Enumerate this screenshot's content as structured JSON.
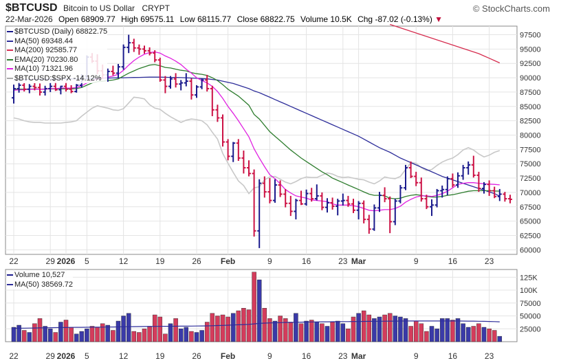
{
  "header": {
    "symbol": "$BTCUSD",
    "name": "Bitcoin to US Dollar",
    "exchange": "CRYPT",
    "copyright": "© StockCharts.com",
    "date": "22-Mar-2026",
    "open_label": "Open",
    "open": "68909.77",
    "high_label": "High",
    "high": "69575.11",
    "low_label": "Low",
    "low": "68115.77",
    "close_label": "Close",
    "close": "68822.75",
    "volume_label": "Volume",
    "volume": "10.5K",
    "chg_label": "Chg",
    "chg": "-87.02 (-0.13%)",
    "chg_arrow": "▼"
  },
  "legend_price": [
    {
      "text": "$BTCUSD (Daily) 68822.75",
      "color": "#1a1a8c"
    },
    {
      "text": "MA(50) 69348.44",
      "color": "#2d2d9a"
    },
    {
      "text": "MA(200) 92585.77",
      "color": "#d62d4f"
    },
    {
      "text": "EMA(20) 70230.80",
      "color": "#2e7d2e"
    },
    {
      "text": "MA(10) 71321.96",
      "color": "#e020e0"
    },
    {
      "text": "$BTCUSD:$SPX -14.12%",
      "color": "#aaaaaa"
    }
  ],
  "legend_volume": [
    {
      "text": "Volume 10,527",
      "color": "#1a1a8c"
    },
    {
      "text": "MA(50) 38569.72",
      "color": "#2d2d9a"
    }
  ],
  "colors": {
    "up": "#1a1a8c",
    "down": "#cc1144",
    "vol_up": "#3a3aa8",
    "vol_down": "#d43c5c",
    "ma50": "#2d2d9a",
    "ma200": "#d62d4f",
    "ema20": "#2e7d2e",
    "ma10": "#e020e0",
    "ratio": "#c8c8c8",
    "grid": "#e4e4e4"
  },
  "chart_data": {
    "type": "ohlc",
    "price_axis_ticks": [
      60000,
      62500,
      65000,
      67500,
      70000,
      72500,
      75000,
      77500,
      80000,
      82500,
      85000,
      87500,
      90000,
      92500,
      95000,
      97500
    ],
    "price_ylim": [
      59200,
      99000
    ],
    "volume_axis_ticks": [
      25000,
      50000,
      75000,
      100000,
      125000
    ],
    "volume_axis_labels": [
      "25000",
      "50000",
      "75000",
      "100K",
      "125K"
    ],
    "volume_ylim": [
      0,
      140000
    ],
    "x_tick_labels": [
      {
        "i": 0,
        "label": "22"
      },
      {
        "i": 7,
        "label": "29"
      },
      {
        "i": 10,
        "label": "2026",
        "bold": true
      },
      {
        "i": 14,
        "label": "5"
      },
      {
        "i": 21,
        "label": "12"
      },
      {
        "i": 28,
        "label": "19"
      },
      {
        "i": 35,
        "label": "26"
      },
      {
        "i": 41,
        "label": "Feb",
        "bold": true
      },
      {
        "i": 49,
        "label": "9"
      },
      {
        "i": 56,
        "label": "16"
      },
      {
        "i": 63,
        "label": "23"
      },
      {
        "i": 66,
        "label": "Mar",
        "bold": true
      },
      {
        "i": 77,
        "label": "9"
      },
      {
        "i": 84,
        "label": "16"
      },
      {
        "i": 91,
        "label": "23"
      }
    ],
    "bars": [
      [
        86500,
        88800,
        85500,
        88100
      ],
      [
        88100,
        89300,
        87400,
        88700
      ],
      [
        88700,
        89100,
        87600,
        88000
      ],
      [
        88000,
        88900,
        87300,
        88500
      ],
      [
        88500,
        89100,
        87800,
        88300
      ],
      [
        88300,
        89000,
        86900,
        87500
      ],
      [
        87500,
        88600,
        86900,
        88100
      ],
      [
        88100,
        89200,
        87500,
        88500
      ],
      [
        88500,
        89300,
        87700,
        87900
      ],
      [
        87900,
        88600,
        87100,
        88500
      ],
      [
        88500,
        89300,
        87600,
        88000
      ],
      [
        88000,
        88700,
        87300,
        87600
      ],
      [
        87600,
        88900,
        87400,
        88700
      ],
      [
        88700,
        90600,
        88300,
        90300
      ],
      [
        90300,
        93900,
        89800,
        93600
      ],
      [
        93600,
        94300,
        92600,
        92900
      ],
      [
        92900,
        94100,
        90600,
        91200
      ],
      [
        91200,
        92300,
        89800,
        90500
      ],
      [
        90500,
        91600,
        89300,
        91100
      ],
      [
        91100,
        92100,
        90400,
        90800
      ],
      [
        90800,
        92400,
        89900,
        91900
      ],
      [
        91900,
        95800,
        91400,
        95300
      ],
      [
        95300,
        97500,
        94300,
        96100
      ],
      [
        96100,
        96800,
        94500,
        95200
      ],
      [
        95200,
        95800,
        94000,
        95000
      ],
      [
        95000,
        95600,
        94200,
        94700
      ],
      [
        94700,
        95300,
        93900,
        94300
      ],
      [
        94300,
        94800,
        92700,
        93100
      ],
      [
        93100,
        93500,
        89300,
        89600
      ],
      [
        89600,
        90300,
        87300,
        88500
      ],
      [
        88500,
        90300,
        88100,
        89800
      ],
      [
        89800,
        90800,
        88300,
        88900
      ],
      [
        88900,
        89600,
        87800,
        89100
      ],
      [
        89100,
        90800,
        88500,
        89400
      ],
      [
        89400,
        89900,
        86200,
        87000
      ],
      [
        87000,
        88700,
        86500,
        88400
      ],
      [
        88400,
        89900,
        88000,
        89600
      ],
      [
        89600,
        90500,
        87600,
        88100
      ],
      [
        88100,
        88600,
        83300,
        84400
      ],
      [
        84400,
        85300,
        82300,
        83000
      ],
      [
        83000,
        83600,
        78000,
        78800
      ],
      [
        78800,
        79300,
        75600,
        76300
      ],
      [
        76300,
        78800,
        75300,
        78600
      ],
      [
        78600,
        79300,
        75500,
        76000
      ],
      [
        76000,
        77300,
        73300,
        74300
      ],
      [
        74300,
        75600,
        72800,
        73300
      ],
      [
        73300,
        74000,
        62300,
        63300
      ],
      [
        63300,
        72300,
        60300,
        71600
      ],
      [
        71600,
        72800,
        69100,
        70100
      ],
      [
        70100,
        72500,
        68100,
        68600
      ],
      [
        68600,
        72300,
        68200,
        71300
      ],
      [
        71300,
        72100,
        69200,
        69700
      ],
      [
        69700,
        70600,
        67400,
        68100
      ],
      [
        68100,
        69400,
        65900,
        66700
      ],
      [
        66700,
        68900,
        65300,
        68600
      ],
      [
        68600,
        70300,
        67800,
        68000
      ],
      [
        68000,
        70500,
        67700,
        69800
      ],
      [
        69800,
        70800,
        68400,
        68900
      ],
      [
        68900,
        71400,
        68600,
        69400
      ],
      [
        69400,
        70000,
        66900,
        67400
      ],
      [
        67400,
        69000,
        66500,
        68200
      ],
      [
        68200,
        69100,
        67000,
        67600
      ],
      [
        67600,
        68900,
        66000,
        68500
      ],
      [
        68500,
        69800,
        67700,
        68600
      ],
      [
        68600,
        69400,
        67500,
        68000
      ],
      [
        68000,
        68900,
        66400,
        66900
      ],
      [
        66900,
        68500,
        65300,
        68100
      ],
      [
        68100,
        68600,
        64600,
        65300
      ],
      [
        65300,
        66100,
        62800,
        63600
      ],
      [
        63600,
        67900,
        63300,
        67300
      ],
      [
        67300,
        70100,
        66600,
        69500
      ],
      [
        69500,
        70900,
        68300,
        68900
      ],
      [
        68900,
        69300,
        62900,
        64900
      ],
      [
        64900,
        68900,
        64300,
        68500
      ],
      [
        68500,
        71300,
        68100,
        70800
      ],
      [
        70800,
        74800,
        70400,
        74300
      ],
      [
        74300,
        75400,
        72500,
        72800
      ],
      [
        72800,
        73600,
        71100,
        71700
      ],
      [
        71700,
        72600,
        68400,
        68900
      ],
      [
        68900,
        69600,
        67100,
        67500
      ],
      [
        67500,
        68800,
        65900,
        67800
      ],
      [
        67800,
        70600,
        67400,
        70300
      ],
      [
        70300,
        71200,
        69100,
        70500
      ],
      [
        70500,
        72800,
        69500,
        72400
      ],
      [
        72400,
        73300,
        70900,
        71300
      ],
      [
        71300,
        73500,
        70800,
        72900
      ],
      [
        72900,
        74800,
        72200,
        74300
      ],
      [
        74300,
        75400,
        73100,
        74800
      ],
      [
        74800,
        76400,
        72600,
        73000
      ],
      [
        73000,
        73600,
        70100,
        70700
      ],
      [
        70700,
        71800,
        69800,
        71400
      ],
      [
        71400,
        72100,
        69400,
        70300
      ],
      [
        70300,
        71000,
        69000,
        69300
      ],
      [
        69300,
        70600,
        68500,
        69700
      ],
      [
        69700,
        70100,
        68400,
        68900
      ],
      [
        68900,
        69600,
        68100,
        68800
      ]
    ],
    "volume": [
      28000,
      32000,
      22000,
      18000,
      35000,
      45000,
      30000,
      25000,
      18000,
      38000,
      42000,
      28000,
      15000,
      20000,
      25000,
      30000,
      28000,
      35000,
      32000,
      22000,
      40000,
      50000,
      55000,
      20000,
      18000,
      25000,
      30000,
      52000,
      48000,
      15000,
      35000,
      45000,
      25000,
      28000,
      20000,
      18000,
      22000,
      38000,
      55000,
      50000,
      52000,
      48000,
      55000,
      60000,
      65000,
      62000,
      135000,
      120000,
      65000,
      45000,
      40000,
      50000,
      45000,
      38000,
      55000,
      35000,
      40000,
      42000,
      38000,
      35000,
      30000,
      38000,
      40000,
      35000,
      25000,
      48000,
      55000,
      60000,
      52000,
      45000,
      48000,
      52000,
      55000,
      50000,
      48000,
      45000,
      30000,
      40000,
      35000,
      20000,
      30000,
      25000,
      45000,
      45000,
      42000,
      45000,
      35000,
      28000,
      30000,
      35000,
      28000,
      25000,
      22000,
      10527
    ],
    "ma50": [
      89600,
      89650,
      89700,
      89720,
      89730,
      89740,
      89750,
      89760,
      89770,
      89780,
      89790,
      89800,
      89820,
      89840,
      89860,
      89880,
      89900,
      89920,
      89940,
      89960,
      89980,
      90000,
      90020,
      90040,
      90060,
      90080,
      90100,
      90120,
      90100,
      90080,
      90060,
      90040,
      90020,
      90000,
      89950,
      89900,
      89850,
      89800,
      89700,
      89600,
      89400,
      89200,
      89000,
      88700,
      88400,
      88100,
      87700,
      87400,
      87000,
      86600,
      86200,
      85800,
      85400,
      85000,
      84600,
      84200,
      83800,
      83400,
      83000,
      82600,
      82200,
      81800,
      81400,
      81000,
      80600,
      80200,
      79800,
      79300,
      78800,
      78300,
      77800,
      77400,
      77000,
      76500,
      76000,
      75600,
      75200,
      74800,
      74400,
      74000,
      73600,
      73200,
      72800,
      72500,
      72200,
      71900,
      71600,
      71300,
      71000,
      70700,
      70400,
      70100,
      69800,
      69348
    ],
    "ma200": [
      null,
      null,
      null,
      null,
      null,
      null,
      null,
      null,
      null,
      null,
      null,
      null,
      null,
      null,
      null,
      null,
      null,
      null,
      null,
      null,
      null,
      null,
      null,
      null,
      null,
      null,
      null,
      null,
      null,
      null,
      null,
      null,
      null,
      null,
      null,
      null,
      null,
      null,
      null,
      null,
      null,
      null,
      null,
      null,
      null,
      null,
      null,
      null,
      null,
      null,
      null,
      null,
      null,
      null,
      null,
      null,
      null,
      null,
      null,
      null,
      null,
      null,
      null,
      null,
      null,
      null,
      null,
      null,
      null,
      null,
      null,
      null,
      99300,
      99000,
      98700,
      98400,
      98100,
      97800,
      97500,
      97200,
      96900,
      96600,
      96300,
      96000,
      95700,
      95400,
      95100,
      94800,
      94500,
      94200,
      93800,
      93400,
      93000,
      92586
    ],
    "ema20": [
      88000,
      88020,
      88010,
      88030,
      88040,
      88020,
      88030,
      88060,
      88050,
      88080,
      88070,
      88050,
      88100,
      88300,
      88700,
      89100,
      89300,
      89400,
      89500,
      89600,
      89800,
      90300,
      90800,
      91200,
      91600,
      91900,
      92200,
      92300,
      92100,
      91800,
      91700,
      91500,
      91300,
      91200,
      90900,
      90700,
      90600,
      90400,
      90000,
      89500,
      88800,
      88000,
      87400,
      86800,
      86000,
      85200,
      83600,
      82800,
      81700,
      80600,
      79800,
      79000,
      78200,
      77400,
      76700,
      76000,
      75400,
      74800,
      74200,
      73600,
      73100,
      72500,
      72100,
      71700,
      71300,
      70900,
      70500,
      70100,
      69700,
      69500,
      69500,
      69400,
      69000,
      68900,
      69000,
      69300,
      69500,
      69600,
      69500,
      69300,
      69200,
      69200,
      69300,
      69500,
      69600,
      69800,
      70000,
      70200,
      70300,
      70300,
      70300,
      70300,
      70250,
      70231
    ],
    "ma10": [
      87800,
      87900,
      87900,
      88000,
      88000,
      88000,
      88000,
      88100,
      88100,
      88200,
      88200,
      88200,
      88300,
      88600,
      89100,
      89500,
      89800,
      89900,
      90100,
      90300,
      90600,
      91300,
      92200,
      93000,
      93600,
      94100,
      94400,
      94500,
      94300,
      93800,
      93400,
      92900,
      92300,
      91500,
      90800,
      90000,
      89500,
      89100,
      88500,
      87600,
      86400,
      85000,
      83800,
      82500,
      81100,
      79700,
      77600,
      76000,
      74500,
      73100,
      72400,
      71500,
      70500,
      69900,
      69400,
      69200,
      69000,
      68700,
      68600,
      68500,
      68400,
      68000,
      67800,
      67800,
      67800,
      67700,
      67500,
      67200,
      66900,
      66800,
      66900,
      67000,
      67000,
      67200,
      67600,
      68300,
      68800,
      69200,
      69400,
      69400,
      69300,
      69500,
      69800,
      70200,
      70800,
      71400,
      71600,
      71700,
      71700,
      71600,
      71500,
      71450,
      71400,
      71322
    ],
    "ratio": [
      83000,
      82800,
      82500,
      82300,
      82200,
      82200,
      82100,
      82100,
      82100,
      82100,
      82200,
      82300,
      82500,
      83300,
      84000,
      84700,
      85100,
      84900,
      84700,
      84400,
      84300,
      84600,
      85600,
      86600,
      86500,
      86300,
      85300,
      84700,
      84500,
      83800,
      83200,
      82700,
      82200,
      82600,
      82800,
      82700,
      82500,
      81800,
      80500,
      79300,
      76800,
      75100,
      73500,
      72000,
      71200,
      69800,
      70800,
      71000,
      72200,
      72700,
      72800,
      72300,
      71800,
      71500,
      71900,
      72400,
      72700,
      72600,
      72600,
      73000,
      73400,
      73200,
      72800,
      72600,
      72700,
      72500,
      72300,
      72200,
      71800,
      71500,
      72000,
      72700,
      72500,
      72400,
      72800,
      74000,
      75200,
      75100,
      74300,
      73800,
      74000,
      74700,
      75300,
      75700,
      76000,
      76600,
      77400,
      77800,
      77400,
      76700,
      76200,
      76500,
      77000,
      77300
    ],
    "vol_ma50": [
      26000,
      26200,
      26300,
      26400,
      26600,
      26800,
      27000,
      27200,
      27300,
      27400,
      27500,
      27700,
      27800,
      27900,
      28000,
      28100,
      28200,
      28300,
      28400,
      28500,
      28700,
      28900,
      29100,
      29200,
      29300,
      29400,
      29500,
      29600,
      29700,
      29800,
      29900,
      30000,
      30100,
      30200,
      30300,
      30400,
      30500,
      30700,
      31000,
      31300,
      31600,
      32000,
      32400,
      32800,
      33200,
      33600,
      34500,
      35400,
      36000,
      36400,
      36700,
      37000,
      37300,
      37500,
      37700,
      37900,
      38100,
      38300,
      38400,
      38500,
      38600,
      38700,
      38800,
      38900,
      39000,
      39100,
      39200,
      39300,
      39400,
      39500,
      39600,
      39700,
      39800,
      39900,
      40000,
      40100,
      40100,
      40200,
      40200,
      40200,
      40200,
      40200,
      40200,
      40200,
      40200,
      40100,
      40000,
      39900,
      39800,
      39600,
      39400,
      39200,
      38900,
      38570
    ]
  }
}
